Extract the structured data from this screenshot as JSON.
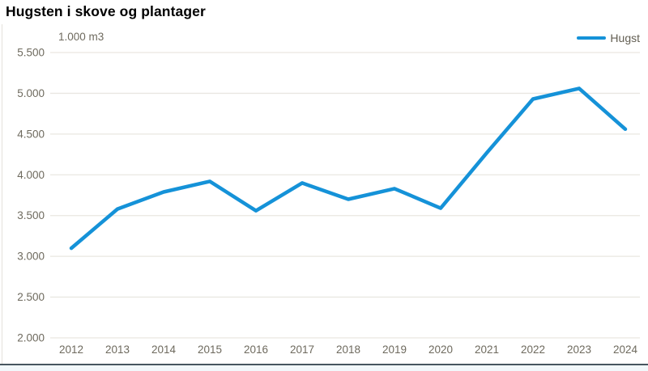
{
  "title": "Hugsten i skove og plantager",
  "unit_label": "1.000 m3",
  "legend": {
    "label": "Hugst"
  },
  "colors": {
    "line": "#1592d8",
    "grid": "#e9e7e1",
    "tick_text": "#6e6a5e",
    "title_text": "#000000",
    "axis_bottom": "#47565f"
  },
  "chart_data": {
    "type": "line",
    "title": "Hugsten i skove og plantager",
    "unit": "1.000 m3",
    "x": [
      "2012",
      "2013",
      "2014",
      "2015",
      "2016",
      "2017",
      "2018",
      "2019",
      "2020",
      "2021",
      "2022",
      "2023",
      "2024"
    ],
    "series": [
      {
        "name": "Hugst",
        "values": [
          3100,
          3580,
          3790,
          3920,
          3560,
          3900,
          3700,
          3830,
          3590,
          4270,
          4930,
          5060,
          4560
        ]
      }
    ],
    "ylim": [
      2000,
      5500
    ],
    "y_ticks": [
      {
        "value": 5500,
        "label": "5.500"
      },
      {
        "value": 5000,
        "label": "5.000"
      },
      {
        "value": 4500,
        "label": "4.500"
      },
      {
        "value": 4000,
        "label": "4.000"
      },
      {
        "value": 3500,
        "label": "3.500"
      },
      {
        "value": 3000,
        "label": "3.000"
      },
      {
        "value": 2500,
        "label": "2.500"
      },
      {
        "value": 2000,
        "label": "2.000"
      }
    ],
    "grid": "horizontal",
    "legend_position": "top-right"
  }
}
